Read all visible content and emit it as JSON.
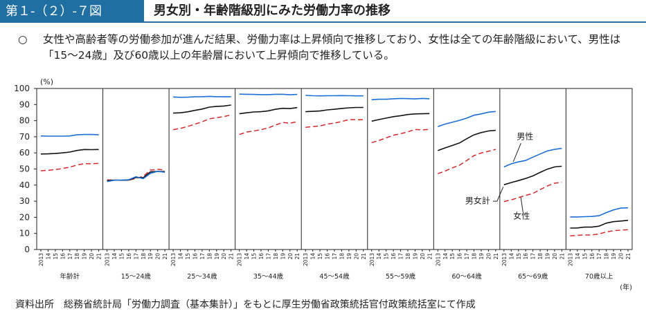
{
  "header": {
    "figure_label": "第１-（２）-７図",
    "title": "男女別・年齢階級別にみた労働力率の推移"
  },
  "summary": {
    "bullet": "○",
    "text": "女性や高齢者等の労働参加が進んだ結果、労働力率は上昇傾向で推移しており、女性は全ての年齢階級において、男性は「15～24歳」及び60歳以上の年齢層において上昇傾向で推移している。"
  },
  "source": "資料出所　総務省統計局「労働力調査（基本集計）」をもとに厚生労働省政策統括官付政策統括室にて作成",
  "colors": {
    "male": "#1a6fd6",
    "total": "#111111",
    "female": "#d9262b"
  },
  "chart_data": {
    "type": "line",
    "y_unit_label": "(%)",
    "x_unit_label": "(年)",
    "ylim": [
      0,
      100
    ],
    "yticks": [
      0,
      10,
      20,
      30,
      40,
      50,
      60,
      70,
      80,
      90,
      100
    ],
    "x_tick_labels": [
      "2013",
      "14",
      "15",
      "16",
      "17",
      "18",
      "19",
      "20",
      "21"
    ],
    "series_labels": {
      "male": "男性",
      "total": "男女計",
      "female": "女性"
    },
    "panels": [
      {
        "label": "年齢計",
        "male": [
          70.5,
          70.4,
          70.4,
          70.4,
          70.5,
          71.2,
          71.4,
          71.4,
          71.3
        ],
        "total": [
          59.3,
          59.4,
          59.6,
          60.0,
          60.5,
          61.5,
          62.1,
          62.0,
          62.1
        ],
        "female": [
          48.9,
          49.2,
          49.6,
          50.3,
          51.1,
          52.5,
          53.3,
          53.2,
          53.5
        ]
      },
      {
        "label": "15～24歳",
        "male": [
          42.2,
          43.0,
          43.1,
          43.3,
          45.2,
          44.0,
          47.3,
          48.6,
          48.0
        ],
        "total": [
          42.7,
          43.1,
          43.0,
          43.1,
          44.7,
          44.6,
          48.2,
          48.5,
          48.4
        ],
        "female": [
          43.2,
          43.1,
          43.0,
          43.0,
          44.2,
          45.4,
          49.3,
          49.8,
          49.4
        ]
      },
      {
        "label": "25～34歳",
        "male": [
          94.7,
          94.5,
          94.6,
          94.8,
          94.9,
          95.1,
          94.9,
          94.9,
          94.9
        ],
        "total": [
          84.7,
          84.9,
          85.5,
          86.4,
          87.2,
          88.4,
          88.9,
          89.1,
          89.7
        ],
        "female": [
          74.4,
          75.2,
          76.4,
          77.8,
          79.3,
          81.1,
          81.9,
          82.5,
          83.6
        ]
      },
      {
        "label": "35～44歳",
        "male": [
          96.5,
          96.4,
          96.3,
          96.2,
          96.2,
          96.4,
          96.4,
          96.1,
          96.3
        ],
        "total": [
          84.3,
          84.9,
          85.4,
          85.6,
          86.1,
          87.1,
          87.7,
          87.5,
          88.1
        ],
        "female": [
          71.4,
          72.9,
          73.6,
          74.4,
          75.5,
          77.3,
          78.9,
          78.4,
          79.4
        ]
      },
      {
        "label": "45～54歳",
        "male": [
          95.7,
          95.5,
          95.4,
          95.5,
          95.5,
          95.6,
          95.5,
          95.4,
          95.4
        ],
        "total": [
          85.6,
          85.8,
          86.0,
          86.7,
          87.1,
          87.6,
          88.0,
          88.2,
          88.2
        ],
        "female": [
          75.9,
          76.3,
          76.7,
          77.9,
          78.5,
          79.5,
          80.7,
          80.6,
          80.6
        ]
      },
      {
        "label": "55～59歳",
        "male": [
          93.0,
          93.3,
          93.3,
          93.6,
          93.8,
          93.7,
          93.5,
          93.8,
          93.6
        ],
        "total": [
          79.7,
          80.7,
          81.6,
          82.5,
          83.1,
          83.8,
          84.2,
          84.3,
          84.4
        ],
        "female": [
          66.4,
          67.7,
          69.3,
          71.0,
          71.9,
          73.1,
          74.5,
          74.3,
          74.6
        ]
      },
      {
        "label": "60～64歳",
        "male": [
          76.3,
          77.9,
          79.0,
          80.2,
          81.6,
          83.4,
          84.2,
          85.3,
          85.7
        ],
        "total": [
          61.4,
          63.1,
          64.6,
          66.2,
          68.8,
          71.2,
          72.6,
          73.6,
          74.0
        ],
        "female": [
          47.1,
          48.7,
          50.7,
          52.3,
          55.3,
          58.3,
          59.9,
          61.0,
          62.2
        ]
      },
      {
        "label": "65～69歳",
        "male": [
          51.3,
          53.2,
          54.4,
          55.3,
          57.4,
          59.3,
          61.2,
          62.2,
          62.8
        ],
        "total": [
          40.2,
          41.6,
          42.8,
          44.1,
          45.7,
          47.9,
          49.9,
          51.3,
          51.7
        ],
        "female": [
          29.8,
          30.8,
          32.2,
          33.6,
          34.8,
          37.2,
          39.5,
          41.2,
          41.7
        ]
      },
      {
        "label": "70歳以上",
        "male": [
          20.2,
          20.2,
          20.4,
          20.5,
          21.0,
          22.9,
          24.6,
          25.7,
          25.9
        ],
        "total": [
          13.3,
          13.4,
          13.9,
          13.9,
          14.5,
          16.4,
          17.3,
          17.7,
          18.1
        ],
        "female": [
          8.5,
          8.8,
          9.0,
          9.0,
          9.7,
          10.9,
          11.7,
          12.0,
          12.3
        ]
      }
    ]
  }
}
